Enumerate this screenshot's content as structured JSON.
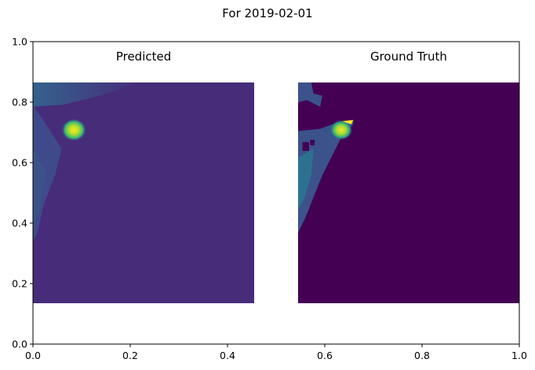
{
  "chart_data": {
    "type": "heatmap",
    "title": "For 2019-02-01",
    "xlim": [
      0,
      1
    ],
    "ylim": [
      0,
      1
    ],
    "x_ticks": [
      "0.0",
      "0.2",
      "0.4",
      "0.6",
      "0.8",
      "1.0"
    ],
    "y_ticks": [
      "0.0",
      "0.2",
      "0.4",
      "0.6",
      "0.8",
      "1.0"
    ],
    "grid": false,
    "colormap": "viridis",
    "colors": {
      "low": "#440154",
      "mid": "#3b528b",
      "mid2": "#21918c",
      "high": "#5ec962",
      "max": "#fde725"
    },
    "panels": [
      {
        "label": "Predicted",
        "extent": {
          "x": [
            0.0,
            0.455
          ],
          "y": [
            0.135,
            0.865
          ]
        },
        "background_level": 0.05
      },
      {
        "label": "Ground Truth",
        "extent": {
          "x": [
            0.545,
            1.0
          ],
          "y": [
            0.135,
            0.865
          ]
        },
        "background_level": 0.0
      }
    ]
  }
}
